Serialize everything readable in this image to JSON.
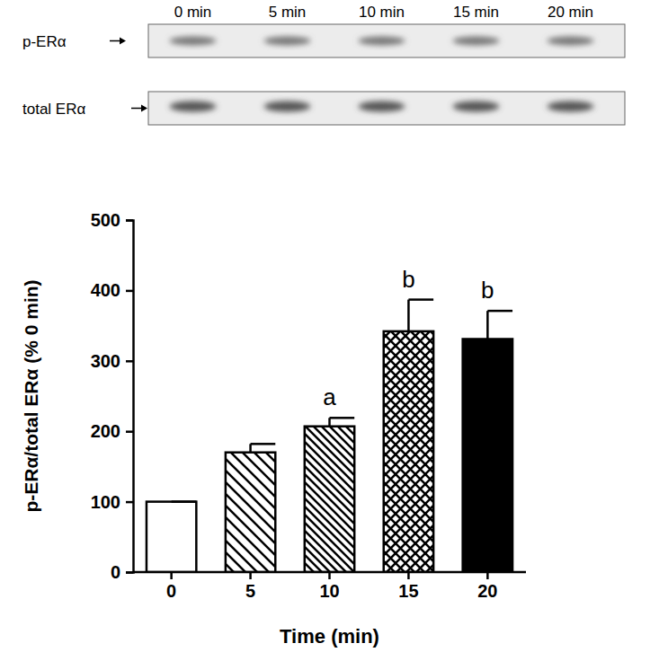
{
  "chart_data": {
    "type": "bar",
    "categories": [
      "0",
      "5",
      "10",
      "15",
      "20"
    ],
    "values": [
      100,
      170,
      207,
      342,
      331
    ],
    "errors": [
      0,
      12,
      12,
      45,
      40
    ],
    "significance": [
      null,
      null,
      "a",
      "b",
      "b"
    ],
    "colors": [
      "#ffffff",
      "#ffffff",
      "#ffffff",
      "#ffffff",
      "#000000"
    ],
    "x_label": "Time (min)",
    "y_label": "p-ERα/total ERα (% 0 min)",
    "ylim": [
      0,
      500
    ],
    "yticks": [
      0,
      100,
      200,
      300,
      400,
      500
    ],
    "blot": {
      "lanes": [
        "0 min",
        "5 min",
        "10 min",
        "15 min",
        "20 min"
      ],
      "rows": [
        "p-ERα",
        "total ERα"
      ]
    }
  }
}
